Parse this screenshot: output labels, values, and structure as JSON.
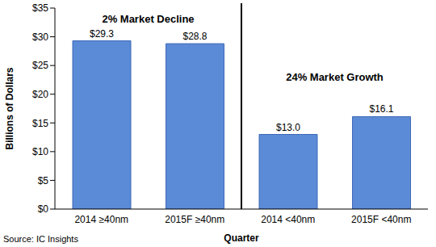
{
  "chart_data": {
    "type": "bar",
    "y_label": "Billions of Dollars",
    "x_label": "Quarter",
    "categories": [
      "2014 ≥40nm",
      "2015F ≥40nm",
      "2014 <40nm",
      "2015F <40nm"
    ],
    "values": [
      29.3,
      28.8,
      13.0,
      16.1
    ],
    "value_labels": [
      "$29.3",
      "$28.8",
      "$13.0",
      "$16.1"
    ],
    "data_labels": true,
    "color": "#5b8ad6",
    "ylim": [
      0,
      35
    ],
    "yticks": [
      {
        "value": 0,
        "label": "$0"
      },
      {
        "value": 5,
        "label": "$5"
      },
      {
        "value": 10,
        "label": "$10"
      },
      {
        "value": 15,
        "label": "$15"
      },
      {
        "value": 20,
        "label": "$20"
      },
      {
        "value": 25,
        "label": "$25"
      },
      {
        "value": 30,
        "label": "$30"
      },
      {
        "value": 35,
        "label": "$35"
      }
    ],
    "grid": false,
    "annotations": [
      "2% Market Decline",
      "24% Market Growth"
    ],
    "source": "Source: IC Insights"
  }
}
